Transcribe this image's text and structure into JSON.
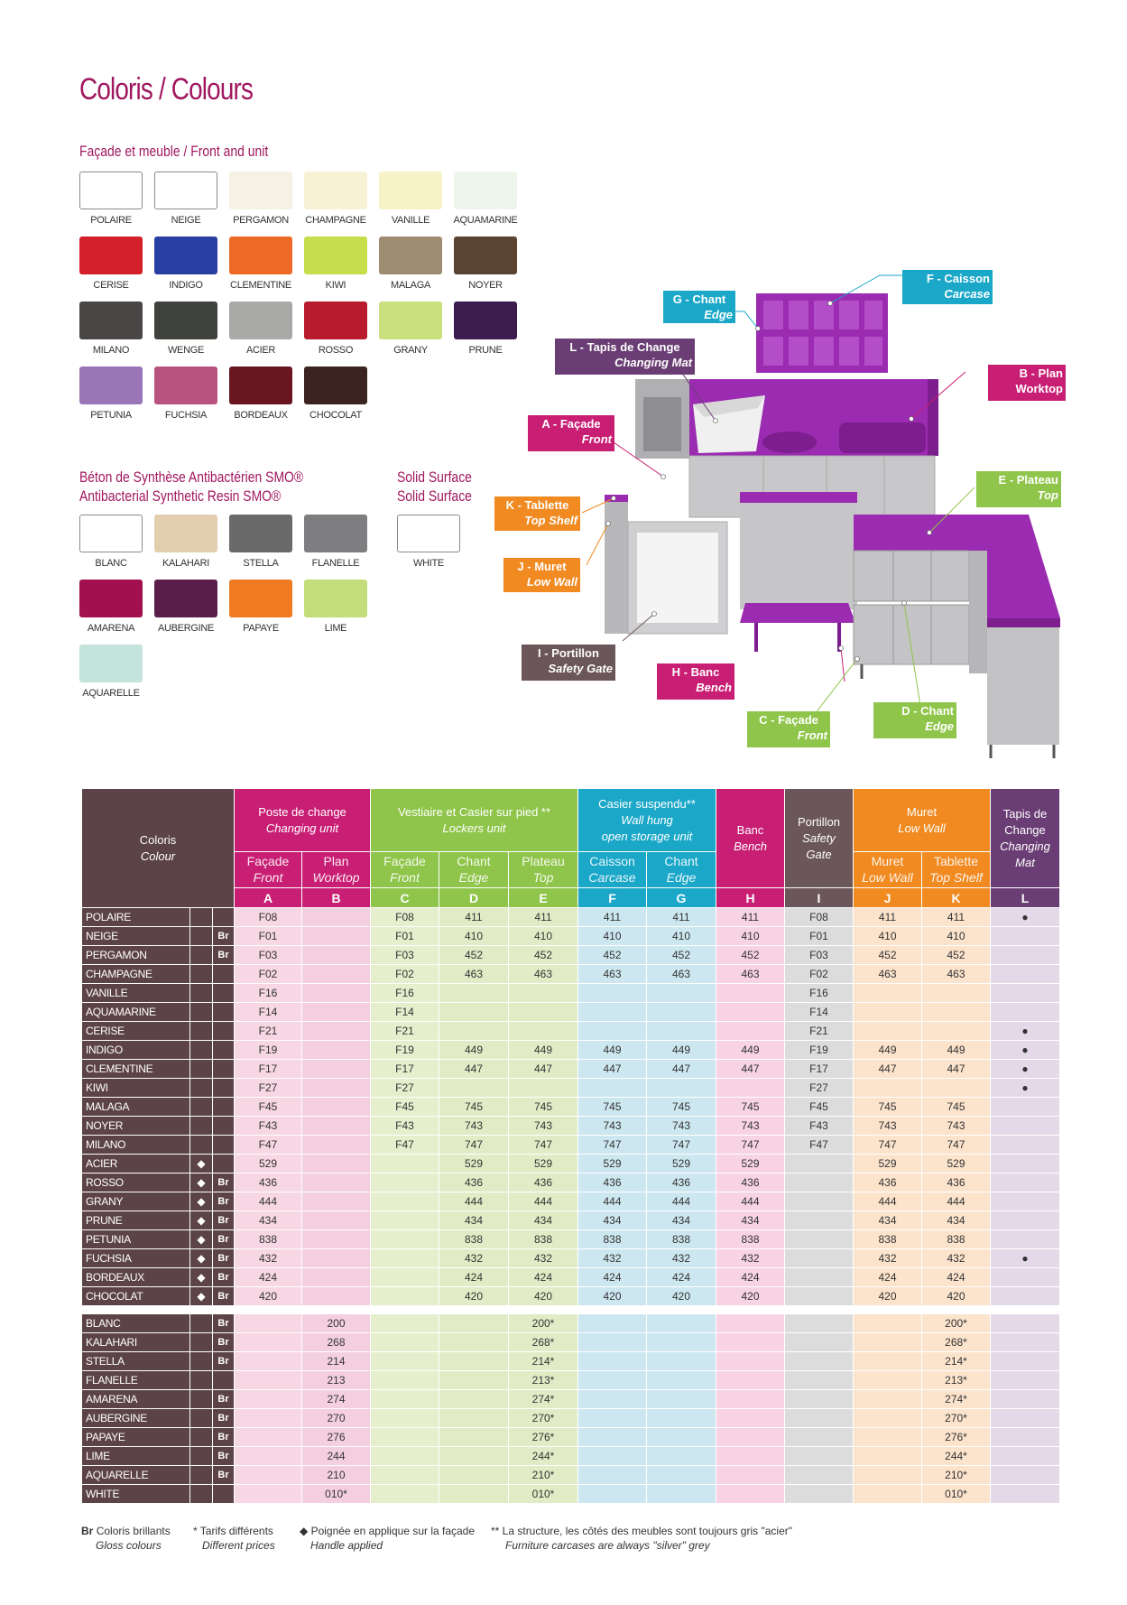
{
  "title": {
    "a": "Coloris",
    "sep": " / ",
    "b": "Colours"
  },
  "facade_title": {
    "a": "Façade et meuble",
    "sep": " / ",
    "b": "Front and unit"
  },
  "facade_swatches": [
    {
      "name": "POLAIRE",
      "color": "#ffffff"
    },
    {
      "name": "NEIGE",
      "color": "#ffffff"
    },
    {
      "name": "PERGAMON",
      "color": "#f6f1e4"
    },
    {
      "name": "CHAMPAGNE",
      "color": "#f7f2d6"
    },
    {
      "name": "VANILLE",
      "color": "#f7f2c8"
    },
    {
      "name": "AQUAMARINE",
      "color": "#eef6ec"
    },
    {
      "name": "CERISE",
      "color": "#d3202a"
    },
    {
      "name": "INDIGO",
      "color": "#2a3fa3"
    },
    {
      "name": "CLEMENTINE",
      "color": "#ec6a25"
    },
    {
      "name": "KIWI",
      "color": "#c7de4c"
    },
    {
      "name": "MALAGA",
      "color": "#9d8b72"
    },
    {
      "name": "NOYER",
      "color": "#5b4332"
    },
    {
      "name": "MILANO",
      "color": "#4a4646"
    },
    {
      "name": "WENGE",
      "color": "#3f423d"
    },
    {
      "name": "ACIER",
      "color": "#a9aaa8"
    },
    {
      "name": "ROSSO",
      "color": "#b81c2c"
    },
    {
      "name": "GRANY",
      "color": "#c9e07c"
    },
    {
      "name": "PRUNE",
      "color": "#3c1c4e"
    },
    {
      "name": "PETUNIA",
      "color": "#9a76b8"
    },
    {
      "name": "FUCHSIA",
      "color": "#b8537f"
    },
    {
      "name": "BORDEAUX",
      "color": "#6a1620"
    },
    {
      "name": "CHOCOLAT",
      "color": "#3b2420"
    }
  ],
  "smo_title": {
    "a": "Béton de Synthèse Antibactérien SMO®",
    "b": "Antibacterial Synthetic Resin SMO®"
  },
  "smo_swatches": [
    {
      "name": "BLANC",
      "color": "#ffffff"
    },
    {
      "name": "KALAHARI",
      "color": "#e3cfb0"
    },
    {
      "name": "STELLA",
      "color": "#6a6a6a"
    },
    {
      "name": "FLANELLE",
      "color": "#7e7e80"
    },
    {
      "name": "AMARENA",
      "color": "#a3104f"
    },
    {
      "name": "AUBERGINE",
      "color": "#5b1e4c"
    },
    {
      "name": "PAPAYE",
      "color": "#f07a22"
    },
    {
      "name": "LIME",
      "color": "#c3dd7a"
    },
    {
      "name": "AQUARELLE",
      "color": "#c4e3dc"
    }
  ],
  "solid_title": {
    "a": "Solid Surface",
    "b": "Solid Surface"
  },
  "solid_swatches": [
    {
      "name": "WHITE",
      "color": "#ffffff"
    }
  ],
  "callouts": {
    "G": {
      "fr": "G - Chant",
      "en": "Edge",
      "color": "#1aa7c8"
    },
    "F": {
      "fr": "F - Caisson",
      "en": "Carcase",
      "color": "#1aa7c8"
    },
    "L": {
      "fr": "L - Tapis de Change",
      "en": "Changing Mat",
      "color": "#6a3d74"
    },
    "B": {
      "fr": "B - Plan",
      "en": "Worktop",
      "color": "#c81f74"
    },
    "A": {
      "fr": "A - Façade",
      "en": "Front",
      "color": "#c81f74"
    },
    "E": {
      "fr": "E - Plateau",
      "en": "Top",
      "color": "#8fc54a"
    },
    "K": {
      "fr": "K - Tablette",
      "en": "Top Shelf",
      "color": "#f08a21"
    },
    "J": {
      "fr": "J - Muret",
      "en": "Low Wall",
      "color": "#f08a21"
    },
    "I": {
      "fr": "I - Portillon",
      "en": "Safety Gate",
      "color": "#6b5659"
    },
    "H": {
      "fr": "H - Banc",
      "en": "Bench",
      "color": "#c81f74"
    },
    "C": {
      "fr": "C - Façade",
      "en": "Front",
      "color": "#8fc54a"
    },
    "D": {
      "fr": "D - Chant",
      "en": "Edge",
      "color": "#8fc54a"
    }
  },
  "table_header": {
    "coloris": "Coloris",
    "colour": "Colour",
    "poste_fr": "Poste de change",
    "poste_en": "Changing unit",
    "vest_fr": "Vestiaire et Casier sur pied **",
    "vest_en": "Lockers unit",
    "casier_fr": "Casier suspendu**",
    "casier_en1": "Wall hung",
    "casier_en2": "open storage unit",
    "banc_fr": "Banc",
    "banc_en": "Bench",
    "port_fr": "Portillon",
    "port_en1": "Safety",
    "port_en2": "Gate",
    "muret_fr": "Muret",
    "muret_en": "Low Wall",
    "tapis_fr1": "Tapis de",
    "tapis_fr2": "Change",
    "tapis_en1": "Changing",
    "tapis_en2": "Mat",
    "sub": [
      {
        "fr": "Façade",
        "en": "Front"
      },
      {
        "fr": "Plan",
        "en": "Worktop"
      },
      {
        "fr": "Façade",
        "en": "Front"
      },
      {
        "fr": "Chant",
        "en": "Edge"
      },
      {
        "fr": "Plateau",
        "en": "Top"
      },
      {
        "fr": "Caisson",
        "en": "Carcase"
      },
      {
        "fr": "Chant",
        "en": "Edge"
      },
      {
        "fr": "Muret",
        "en": "Low Wall"
      },
      {
        "fr": "Tablette",
        "en": "Top Shelf"
      }
    ],
    "letters": [
      "A",
      "B",
      "C",
      "D",
      "E",
      "F",
      "G",
      "H",
      "I",
      "J",
      "K",
      "L"
    ]
  },
  "rows1": [
    {
      "n": "POLAIRE",
      "m": "",
      "br": "",
      "v": [
        "F08",
        "",
        "F08",
        "411",
        "411",
        "411",
        "411",
        "411",
        "F08",
        "411",
        "411",
        "●"
      ]
    },
    {
      "n": "NEIGE",
      "m": "",
      "br": "Br",
      "v": [
        "F01",
        "",
        "F01",
        "410",
        "410",
        "410",
        "410",
        "410",
        "F01",
        "410",
        "410",
        ""
      ]
    },
    {
      "n": "PERGAMON",
      "m": "",
      "br": "Br",
      "v": [
        "F03",
        "",
        "F03",
        "452",
        "452",
        "452",
        "452",
        "452",
        "F03",
        "452",
        "452",
        ""
      ]
    },
    {
      "n": "CHAMPAGNE",
      "m": "",
      "br": "",
      "v": [
        "F02",
        "",
        "F02",
        "463",
        "463",
        "463",
        "463",
        "463",
        "F02",
        "463",
        "463",
        ""
      ]
    },
    {
      "n": "VANILLE",
      "m": "",
      "br": "",
      "v": [
        "F16",
        "",
        "F16",
        "",
        "",
        "",
        "",
        "",
        "F16",
        "",
        "",
        ""
      ]
    },
    {
      "n": "AQUAMARINE",
      "m": "",
      "br": "",
      "v": [
        "F14",
        "",
        "F14",
        "",
        "",
        "",
        "",
        "",
        "F14",
        "",
        "",
        ""
      ]
    },
    {
      "n": "CERISE",
      "m": "",
      "br": "",
      "v": [
        "F21",
        "",
        "F21",
        "",
        "",
        "",
        "",
        "",
        "F21",
        "",
        "",
        "●"
      ]
    },
    {
      "n": "INDIGO",
      "m": "",
      "br": "",
      "v": [
        "F19",
        "",
        "F19",
        "449",
        "449",
        "449",
        "449",
        "449",
        "F19",
        "449",
        "449",
        "●"
      ]
    },
    {
      "n": "CLEMENTINE",
      "m": "",
      "br": "",
      "v": [
        "F17",
        "",
        "F17",
        "447",
        "447",
        "447",
        "447",
        "447",
        "F17",
        "447",
        "447",
        "●"
      ]
    },
    {
      "n": "KIWI",
      "m": "",
      "br": "",
      "v": [
        "F27",
        "",
        "F27",
        "",
        "",
        "",
        "",
        "",
        "F27",
        "",
        "",
        "●"
      ]
    },
    {
      "n": "MALAGA",
      "m": "",
      "br": "",
      "v": [
        "F45",
        "",
        "F45",
        "745",
        "745",
        "745",
        "745",
        "745",
        "F45",
        "745",
        "745",
        ""
      ]
    },
    {
      "n": "NOYER",
      "m": "",
      "br": "",
      "v": [
        "F43",
        "",
        "F43",
        "743",
        "743",
        "743",
        "743",
        "743",
        "F43",
        "743",
        "743",
        ""
      ]
    },
    {
      "n": "MILANO",
      "m": "",
      "br": "",
      "v": [
        "F47",
        "",
        "F47",
        "747",
        "747",
        "747",
        "747",
        "747",
        "F47",
        "747",
        "747",
        ""
      ]
    },
    {
      "n": "ACIER",
      "m": "◆",
      "br": "",
      "v": [
        "529",
        "",
        "",
        "529",
        "529",
        "529",
        "529",
        "529",
        "",
        "529",
        "529",
        ""
      ]
    },
    {
      "n": "ROSSO",
      "m": "◆",
      "br": "Br",
      "v": [
        "436",
        "",
        "",
        "436",
        "436",
        "436",
        "436",
        "436",
        "",
        "436",
        "436",
        ""
      ]
    },
    {
      "n": "GRANY",
      "m": "◆",
      "br": "Br",
      "v": [
        "444",
        "",
        "",
        "444",
        "444",
        "444",
        "444",
        "444",
        "",
        "444",
        "444",
        ""
      ]
    },
    {
      "n": "PRUNE",
      "m": "◆",
      "br": "Br",
      "v": [
        "434",
        "",
        "",
        "434",
        "434",
        "434",
        "434",
        "434",
        "",
        "434",
        "434",
        ""
      ]
    },
    {
      "n": "PETUNIA",
      "m": "◆",
      "br": "Br",
      "v": [
        "838",
        "",
        "",
        "838",
        "838",
        "838",
        "838",
        "838",
        "",
        "838",
        "838",
        ""
      ]
    },
    {
      "n": "FUCHSIA",
      "m": "◆",
      "br": "Br",
      "v": [
        "432",
        "",
        "",
        "432",
        "432",
        "432",
        "432",
        "432",
        "",
        "432",
        "432",
        "●"
      ]
    },
    {
      "n": "BORDEAUX",
      "m": "◆",
      "br": "Br",
      "v": [
        "424",
        "",
        "",
        "424",
        "424",
        "424",
        "424",
        "424",
        "",
        "424",
        "424",
        ""
      ]
    },
    {
      "n": "CHOCOLAT",
      "m": "◆",
      "br": "Br",
      "v": [
        "420",
        "",
        "",
        "420",
        "420",
        "420",
        "420",
        "420",
        "",
        "420",
        "420",
        ""
      ]
    }
  ],
  "rows2": [
    {
      "n": "BLANC",
      "br": "Br",
      "b": "200",
      "e": "200*",
      "k": "200*"
    },
    {
      "n": "KALAHARI",
      "br": "Br",
      "b": "268",
      "e": "268*",
      "k": "268*"
    },
    {
      "n": "STELLA",
      "br": "Br",
      "b": "214",
      "e": "214*",
      "k": "214*"
    },
    {
      "n": "FLANELLE",
      "br": "",
      "b": "213",
      "e": "213*",
      "k": "213*"
    },
    {
      "n": "AMARENA",
      "br": "Br",
      "b": "274",
      "e": "274*",
      "k": "274*"
    },
    {
      "n": "AUBERGINE",
      "br": "Br",
      "b": "270",
      "e": "270*",
      "k": "270*"
    },
    {
      "n": "PAPAYE",
      "br": "Br",
      "b": "276",
      "e": "276*",
      "k": "276*"
    },
    {
      "n": "LIME",
      "br": "Br",
      "b": "244",
      "e": "244*",
      "k": "244*"
    },
    {
      "n": "AQUARELLE",
      "br": "Br",
      "b": "210",
      "e": "210*",
      "k": "210*"
    },
    {
      "n": "WHITE",
      "br": "",
      "b": "010*",
      "e": "010*",
      "k": "010*"
    }
  ],
  "legend": {
    "br_key": "Br",
    "br_fr": "Coloris brillants",
    "br_en": "Gloss colours",
    "star_fr": "* Tarifs différents",
    "star_en": "Different prices",
    "diamond_fr": "◆ Poignée en applique sur la façade",
    "diamond_en": "Handle applied",
    "dstar_fr": "** La structure, les côtés des meubles sont toujours gris \"acier\"",
    "dstar_en": "Furniture carcases are always \"silver\" grey"
  }
}
